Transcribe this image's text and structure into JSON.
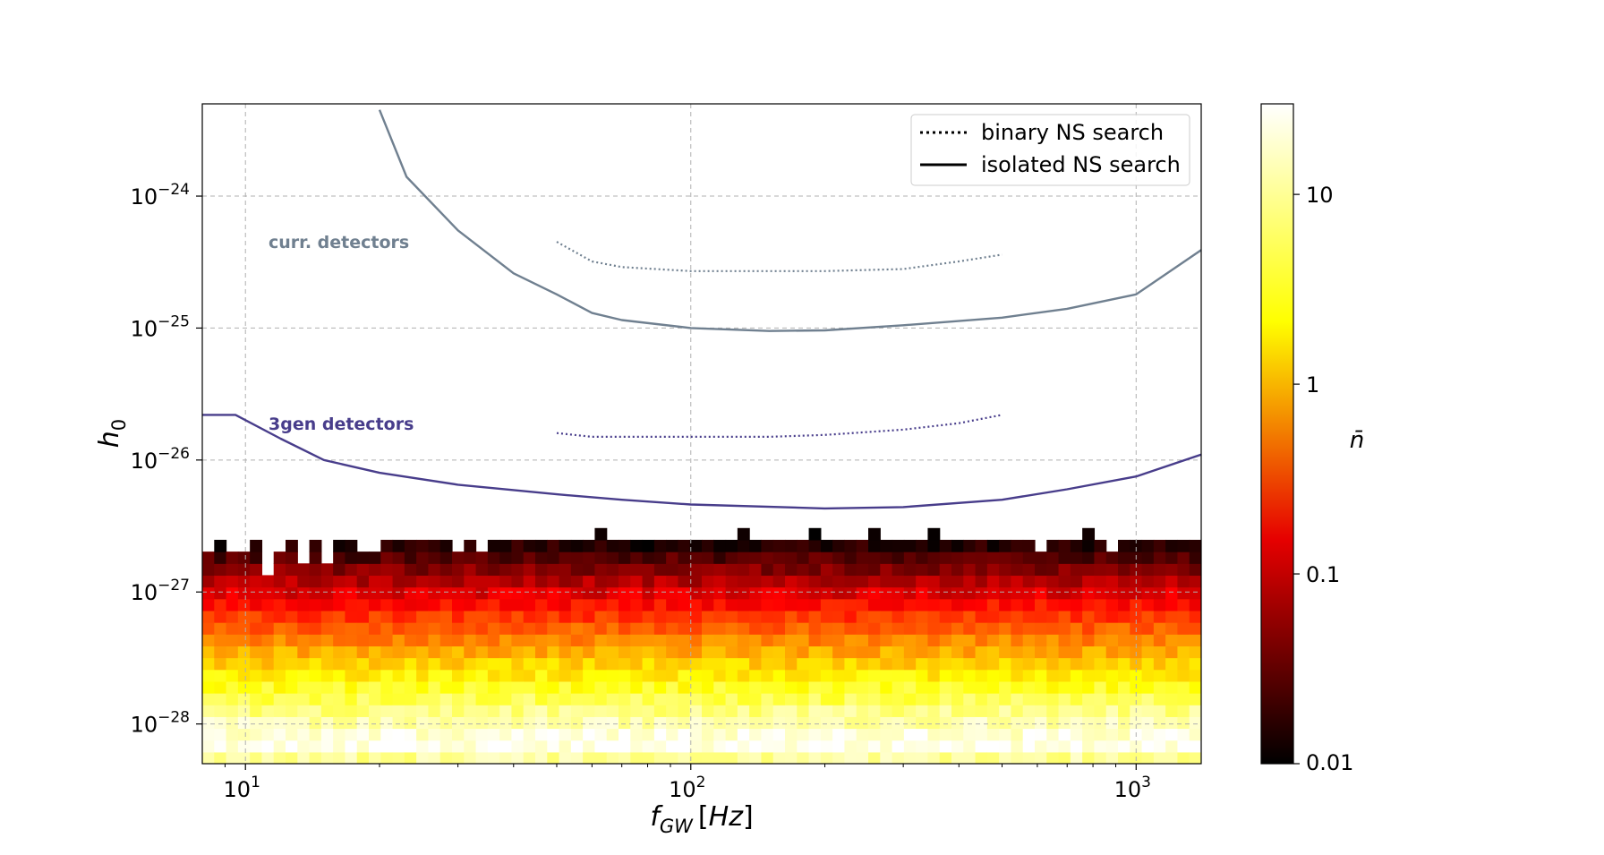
{
  "chart_data": {
    "type": "heatmap",
    "xlabel": "f_GW [Hz]",
    "ylabel": "h_0",
    "x_scale": "log",
    "y_scale": "log",
    "xlim": [
      8,
      1400
    ],
    "ylim": [
      5e-29,
      5e-24
    ],
    "grid": true,
    "x_ticks": [
      {
        "value": 10,
        "base": "10",
        "exp": "1"
      },
      {
        "value": 100,
        "base": "10",
        "exp": "2"
      },
      {
        "value": 1000,
        "base": "10",
        "exp": "3"
      }
    ],
    "y_ticks": [
      {
        "value": 1e-28,
        "base": "10",
        "exp": "−28"
      },
      {
        "value": 1e-27,
        "base": "10",
        "exp": "−27"
      },
      {
        "value": 1e-26,
        "base": "10",
        "exp": "−26"
      },
      {
        "value": 1e-25,
        "base": "10",
        "exp": "−25"
      },
      {
        "value": 1e-24,
        "base": "10",
        "exp": "−24"
      }
    ],
    "colorbar": {
      "label": "n̄",
      "scale": "log",
      "range": [
        0.01,
        30
      ],
      "colormap": "hot",
      "ticks": [
        {
          "value": 0.01,
          "label": "0.01"
        },
        {
          "value": 0.1,
          "label": "0.1"
        },
        {
          "value": 1,
          "label": "1"
        },
        {
          "value": 10,
          "label": "10"
        }
      ]
    },
    "heatmap_model": {
      "description": "mean number of pulsars per bin",
      "peak_h0": 7e-29,
      "peak_value": 30,
      "decay_log10_per_decade": 1.6,
      "upper_edge_h0_at_10Hz": 2e-27,
      "upper_edge_h0_at_1000Hz": 1e-26
    },
    "legend": {
      "position": "upper right",
      "entries": [
        {
          "label": "binary NS search",
          "style": "dotted"
        },
        {
          "label": "isolated NS search",
          "style": "solid"
        }
      ]
    },
    "annotations": [
      {
        "text": "curr. detectors",
        "color": "#708090"
      },
      {
        "text": "3gen detectors",
        "color": "#483D8B"
      }
    ],
    "series": [
      {
        "label": "curr. detectors",
        "style": "solid",
        "color": "#708090",
        "x": [
          20,
          23,
          30,
          40,
          50,
          60,
          70,
          100,
          150,
          200,
          300,
          500,
          700,
          1000,
          1400
        ],
        "y": [
          4.5e-24,
          1.4e-24,
          5.5e-25,
          2.6e-25,
          1.8e-25,
          1.3e-25,
          1.15e-25,
          1e-25,
          9.5e-26,
          9.6e-26,
          1.05e-25,
          1.2e-25,
          1.4e-25,
          1.8e-25,
          3.9e-25
        ]
      },
      {
        "label": "curr. detectors",
        "style": "dotted",
        "color": "#708090",
        "x": [
          50,
          60,
          70,
          100,
          150,
          200,
          300,
          400,
          500
        ],
        "y": [
          4.5e-25,
          3.2e-25,
          2.9e-25,
          2.7e-25,
          2.7e-25,
          2.7e-25,
          2.8e-25,
          3.2e-25,
          3.6e-25
        ]
      },
      {
        "label": "3gen detectors",
        "style": "solid",
        "color": "#483D8B",
        "x": [
          8,
          9.5,
          12,
          15,
          20,
          30,
          50,
          70,
          100,
          200,
          300,
          500,
          700,
          1000,
          1400
        ],
        "y": [
          2.2e-26,
          2.2e-26,
          1.45e-26,
          1e-26,
          8e-27,
          6.5e-27,
          5.5e-27,
          5e-27,
          4.6e-27,
          4.3e-27,
          4.4e-27,
          5e-27,
          6e-27,
          7.5e-27,
          1.1e-26
        ]
      },
      {
        "label": "3gen detectors",
        "style": "dotted",
        "color": "#483D8B",
        "x": [
          50,
          60,
          70,
          100,
          150,
          200,
          300,
          400,
          500
        ],
        "y": [
          1.6e-26,
          1.5e-26,
          1.5e-26,
          1.5e-26,
          1.5e-26,
          1.55e-26,
          1.7e-26,
          1.9e-26,
          2.2e-26
        ]
      }
    ]
  }
}
